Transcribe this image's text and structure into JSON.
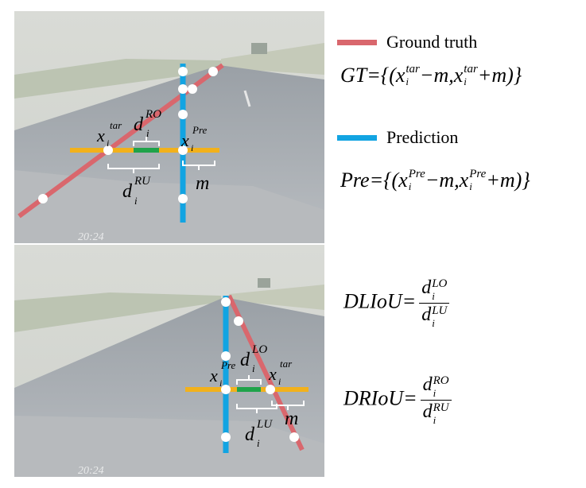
{
  "legend": {
    "ground_truth": {
      "label": "Ground truth",
      "color": "#d9676d"
    },
    "prediction": {
      "label": "Prediction",
      "color": "#12a4e2"
    }
  },
  "colors": {
    "horizontal": "#f2b11b",
    "overlap": "#1fa34a",
    "point": "#ffffff",
    "bracket": "#ffffff",
    "label": "#000000"
  },
  "formulas": {
    "gt": {
      "lhs": "GT",
      "set": "={(x",
      "sup1": "tar",
      "sub": "i",
      "mid": "−m,x",
      "sup2": "tar",
      "end": "+m)}"
    },
    "pre": {
      "lhs": "Pre",
      "set": "={(x",
      "sup1": "Pre",
      "sub": "i",
      "mid": "−m,x",
      "sup2": "Pre",
      "end": "+m)}"
    },
    "dliou": {
      "lhs": "DLIoU",
      "eq": "=",
      "num": "d",
      "num_sup": "LO",
      "den": "d",
      "den_sup": "LU",
      "sub": "i"
    },
    "driou": {
      "lhs": "DRIoU",
      "eq": "=",
      "num": "d",
      "num_sup": "RO",
      "den": "d",
      "den_sup": "RU",
      "sub": "i"
    }
  },
  "top_panel": {
    "timestamp": "20:24",
    "labels": {
      "x_tar": "x",
      "x_tar_sup": "tar",
      "x_pre": "x",
      "x_pre_sup": "Pre",
      "sub_i": "i",
      "d_ro": "d",
      "d_ro_sup": "RO",
      "d_ru": "d",
      "d_ru_sup": "RU",
      "m": "m"
    }
  },
  "bottom_panel": {
    "timestamp": "20:24",
    "labels": {
      "x_tar": "x",
      "x_tar_sup": "tar",
      "x_pre": "x",
      "x_pre_sup": "Pre",
      "sub_i": "i",
      "d_lo": "d",
      "d_lo_sup": "LO",
      "d_lu": "d",
      "d_lu_sup": "LU",
      "m": "m"
    }
  }
}
